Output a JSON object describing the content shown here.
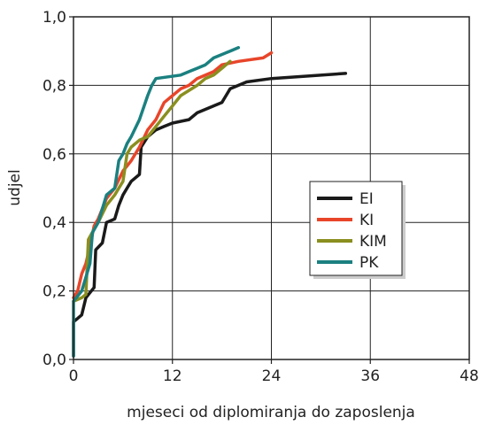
{
  "chart_data": {
    "type": "line",
    "title": "",
    "xlabel": "mjeseci od diplomiranja do zaposlenja",
    "ylabel": "udjel",
    "xlim": [
      0,
      48
    ],
    "ylim": [
      0,
      1
    ],
    "x_ticks": [
      0,
      12,
      24,
      36,
      48
    ],
    "x_tick_labels": [
      "0",
      "12",
      "24",
      "36",
      "48"
    ],
    "y_ticks": [
      0,
      0.2,
      0.4,
      0.6,
      0.8,
      1.0
    ],
    "y_tick_labels": [
      "0,0",
      "0,2",
      "0,4",
      "0,6",
      "0,8",
      "1,0"
    ],
    "grid": true,
    "legend_position": "center-right",
    "series": [
      {
        "name": "EI",
        "color": "#1a1a1a",
        "points": [
          [
            0,
            0.01
          ],
          [
            0,
            0.11
          ],
          [
            0.5,
            0.12
          ],
          [
            1,
            0.13
          ],
          [
            1.5,
            0.18
          ],
          [
            2.5,
            0.21
          ],
          [
            2.7,
            0.32
          ],
          [
            3.5,
            0.34
          ],
          [
            4,
            0.4
          ],
          [
            5,
            0.41
          ],
          [
            5.5,
            0.45
          ],
          [
            6,
            0.48
          ],
          [
            6.5,
            0.5
          ],
          [
            7,
            0.52
          ],
          [
            8,
            0.54
          ],
          [
            8.2,
            0.62
          ],
          [
            9,
            0.65
          ],
          [
            10,
            0.67
          ],
          [
            11,
            0.68
          ],
          [
            12,
            0.69
          ],
          [
            14,
            0.7
          ],
          [
            15,
            0.72
          ],
          [
            16,
            0.73
          ],
          [
            18,
            0.75
          ],
          [
            19,
            0.79
          ],
          [
            20,
            0.8
          ],
          [
            21,
            0.81
          ],
          [
            24,
            0.82
          ],
          [
            33,
            0.835
          ]
        ]
      },
      {
        "name": "KI",
        "color": "#e8452a",
        "points": [
          [
            0,
            0.18
          ],
          [
            0.5,
            0.2
          ],
          [
            1,
            0.25
          ],
          [
            1.5,
            0.28
          ],
          [
            2,
            0.33
          ],
          [
            2.5,
            0.39
          ],
          [
            3,
            0.41
          ],
          [
            4,
            0.47
          ],
          [
            5,
            0.5
          ],
          [
            6,
            0.55
          ],
          [
            7,
            0.58
          ],
          [
            8,
            0.62
          ],
          [
            9,
            0.67
          ],
          [
            10,
            0.7
          ],
          [
            11,
            0.75
          ],
          [
            12,
            0.77
          ],
          [
            13,
            0.79
          ],
          [
            14,
            0.8
          ],
          [
            15,
            0.82
          ],
          [
            17,
            0.84
          ],
          [
            18,
            0.86
          ],
          [
            20,
            0.87
          ],
          [
            23,
            0.88
          ],
          [
            24,
            0.895
          ]
        ]
      },
      {
        "name": "KIM",
        "color": "#8a8f1f",
        "points": [
          [
            0,
            0.17
          ],
          [
            1,
            0.18
          ],
          [
            1.5,
            0.19
          ],
          [
            1.8,
            0.35
          ],
          [
            2.5,
            0.38
          ],
          [
            3,
            0.4
          ],
          [
            4,
            0.45
          ],
          [
            5,
            0.48
          ],
          [
            5.5,
            0.5
          ],
          [
            6,
            0.52
          ],
          [
            6.5,
            0.6
          ],
          [
            7,
            0.62
          ],
          [
            8,
            0.64
          ],
          [
            9,
            0.65
          ],
          [
            10,
            0.68
          ],
          [
            11,
            0.71
          ],
          [
            12,
            0.74
          ],
          [
            13,
            0.77
          ],
          [
            15,
            0.8
          ],
          [
            16,
            0.82
          ],
          [
            17,
            0.83
          ],
          [
            18,
            0.85
          ],
          [
            19,
            0.87
          ]
        ]
      },
      {
        "name": "PK",
        "color": "#1b8080",
        "points": [
          [
            0,
            0.01
          ],
          [
            0,
            0.17
          ],
          [
            1,
            0.2
          ],
          [
            1.5,
            0.24
          ],
          [
            2,
            0.28
          ],
          [
            2.3,
            0.37
          ],
          [
            3,
            0.4
          ],
          [
            4,
            0.48
          ],
          [
            5,
            0.5
          ],
          [
            5.5,
            0.58
          ],
          [
            6,
            0.6
          ],
          [
            6.5,
            0.63
          ],
          [
            7,
            0.65
          ],
          [
            8,
            0.7
          ],
          [
            9,
            0.77
          ],
          [
            9.5,
            0.8
          ],
          [
            10,
            0.82
          ],
          [
            13,
            0.83
          ],
          [
            14,
            0.84
          ],
          [
            15,
            0.85
          ],
          [
            16,
            0.86
          ],
          [
            17,
            0.88
          ],
          [
            19,
            0.9
          ],
          [
            20,
            0.91
          ]
        ]
      }
    ]
  }
}
